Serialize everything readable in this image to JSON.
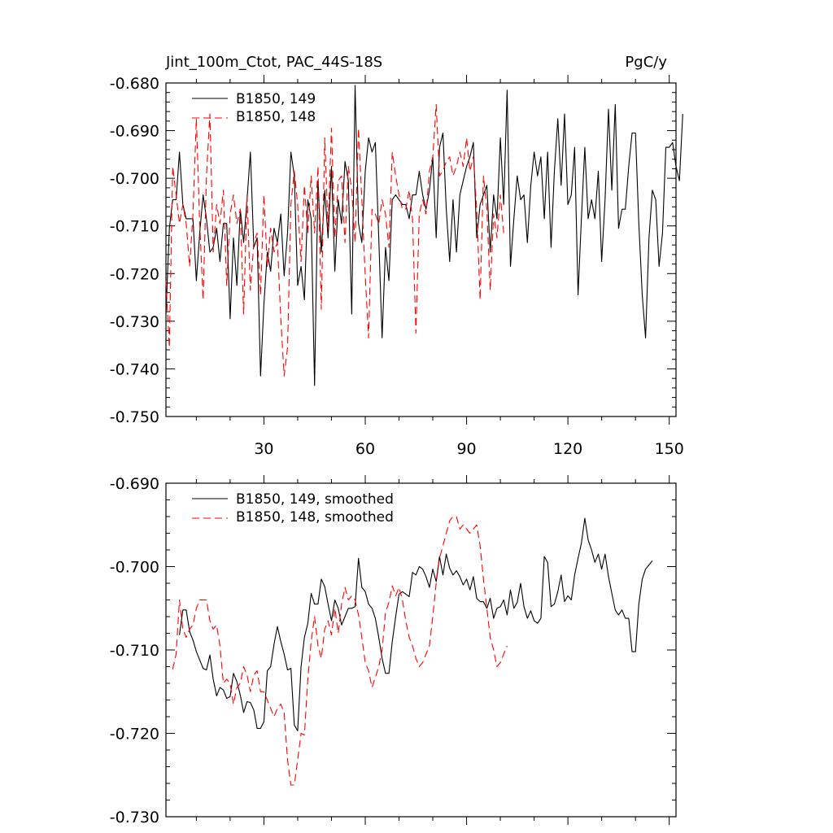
{
  "chart_data": [
    {
      "type": "line",
      "title": "Jint_100m_Ctot, PAC_44S-18S",
      "units": "PgC/y",
      "xlabel": "",
      "ylabel": "",
      "xlim": [
        1,
        152
      ],
      "ylim": [
        -0.75,
        -0.68
      ],
      "xticks": [
        30,
        60,
        90,
        120,
        150
      ],
      "xtick_labels": [
        "30",
        "60",
        "90",
        "120",
        "150"
      ],
      "yticks": [
        -0.75,
        -0.74,
        -0.73,
        -0.72,
        -0.71,
        -0.7,
        -0.69,
        -0.68
      ],
      "ytick_labels": [
        "-0.750",
        "-0.740",
        "-0.730",
        "-0.720",
        "-0.710",
        "-0.700",
        "-0.690",
        "-0.680"
      ],
      "legend_position": "top-left",
      "series": [
        {
          "name": "B1850, 149",
          "color": "#000000",
          "dash": "solid",
          "x_start": 1,
          "values": [
            -0.7285,
            -0.7105,
            -0.7045,
            -0.7045,
            -0.6945,
            -0.7055,
            -0.7085,
            -0.7085,
            -0.7085,
            -0.7215,
            -0.7115,
            -0.7035,
            -0.7085,
            -0.7155,
            -0.7145,
            -0.7105,
            -0.7175,
            -0.7095,
            -0.7095,
            -0.7295,
            -0.7125,
            -0.7225,
            -0.7065,
            -0.7135,
            -0.7045,
            -0.6945,
            -0.7145,
            -0.7125,
            -0.7415,
            -0.7265,
            -0.7155,
            -0.7195,
            -0.7105,
            -0.7135,
            -0.7075,
            -0.7205,
            -0.7115,
            -0.6945,
            -0.6995,
            -0.7225,
            -0.7185,
            -0.7255,
            -0.7045,
            -0.7085,
            -0.7435,
            -0.7005,
            -0.7155,
            -0.7025,
            -0.7125,
            -0.6975,
            -0.7195,
            -0.7045,
            -0.7095,
            -0.6965,
            -0.7005,
            -0.7285,
            -0.6805,
            -0.7095,
            -0.7135,
            -0.6985,
            -0.6915,
            -0.6945,
            -0.6925,
            -0.7125,
            -0.7335,
            -0.7145,
            -0.7215,
            -0.7045,
            -0.7035,
            -0.7045,
            -0.7055,
            -0.7055,
            -0.7085,
            -0.7035,
            -0.7035,
            -0.6985,
            -0.7035,
            -0.7065,
            -0.7025,
            -0.6955,
            -0.7125,
            -0.6935,
            -0.6905,
            -0.7065,
            -0.7175,
            -0.7045,
            -0.7155,
            -0.7035,
            -0.7005,
            -0.6975,
            -0.6955,
            -0.6925,
            -0.7125,
            -0.7055,
            -0.7035,
            -0.7015,
            -0.7155,
            -0.7035,
            -0.7085,
            -0.6915,
            -0.7055,
            -0.6815,
            -0.7185,
            -0.7085,
            -0.6995,
            -0.7045,
            -0.7035,
            -0.7135,
            -0.7015,
            -0.6945,
            -0.6995,
            -0.6955,
            -0.7085,
            -0.6945,
            -0.7145,
            -0.6985,
            -0.6875,
            -0.7015,
            -0.6865,
            -0.7055,
            -0.7035,
            -0.6935,
            -0.7245,
            -0.7085,
            -0.6935,
            -0.7085,
            -0.7045,
            -0.7085,
            -0.6985,
            -0.7175,
            -0.7045,
            -0.6855,
            -0.7025,
            -0.6845,
            -0.7105,
            -0.7065,
            -0.7065,
            -0.6975,
            -0.6905,
            -0.6905,
            -0.7095,
            -0.7245,
            -0.7335,
            -0.7125,
            -0.7025,
            -0.7045,
            -0.7185,
            -0.7115,
            -0.6935,
            -0.6935,
            -0.6925,
            -0.6975,
            -0.7005,
            -0.6865
          ]
        },
        {
          "name": "B1850, 148",
          "color": "#ff0000",
          "dash": "dashed",
          "x_start": 1,
          "values": [
            -0.7215,
            -0.7355,
            -0.6975,
            -0.7035,
            -0.7095,
            -0.7055,
            -0.7095,
            -0.7185,
            -0.7075,
            -0.6875,
            -0.7095,
            -0.7255,
            -0.6995,
            -0.6865,
            -0.7155,
            -0.7055,
            -0.7095,
            -0.7025,
            -0.7225,
            -0.7075,
            -0.7035,
            -0.7095,
            -0.7065,
            -0.7285,
            -0.7035,
            -0.7235,
            -0.7135,
            -0.7115,
            -0.7245,
            -0.7035,
            -0.7185,
            -0.7105,
            -0.7155,
            -0.7135,
            -0.7295,
            -0.7415,
            -0.7355,
            -0.7055,
            -0.6985,
            -0.7055,
            -0.7175,
            -0.7015,
            -0.7115,
            -0.6995,
            -0.7115,
            -0.6975,
            -0.7275,
            -0.6915,
            -0.7105,
            -0.6895,
            -0.7125,
            -0.7005,
            -0.6995,
            -0.7135,
            -0.6975,
            -0.7025,
            -0.7135,
            -0.6895,
            -0.7045,
            -0.7205,
            -0.7335,
            -0.7065,
            -0.7075,
            -0.7095,
            -0.7045,
            -0.7075,
            -0.7145,
            -0.6945,
            -0.6995,
            -0.7035,
            -0.7065,
            -0.7065,
            -0.7025,
            -0.7085,
            -0.7325,
            -0.7075,
            -0.7045,
            -0.7075,
            -0.6985,
            -0.6955,
            -0.6845,
            -0.6995,
            -0.6985,
            -0.6965,
            -0.6955,
            -0.6995,
            -0.6975,
            -0.6945,
            -0.6975,
            -0.6915,
            -0.6985,
            -0.6955,
            -0.7065,
            -0.7255,
            -0.6995,
            -0.7065,
            -0.7235,
            -0.7075,
            -0.7125,
            -0.7035,
            -0.7115
          ]
        }
      ]
    },
    {
      "type": "line",
      "title": "",
      "xlabel": "",
      "ylabel": "",
      "xlim": [
        1,
        152
      ],
      "ylim": [
        -0.73,
        -0.69
      ],
      "xticks": [
        30,
        60,
        90,
        120,
        150
      ],
      "yticks": [
        -0.73,
        -0.72,
        -0.71,
        -0.7,
        -0.69
      ],
      "ytick_labels": [
        "-0.730",
        "-0.720",
        "-0.710",
        "-0.700",
        "-0.690"
      ],
      "legend_position": "top-left",
      "series": [
        {
          "name": "B1850, 149, smoothed",
          "color": "#000000",
          "dash": "solid",
          "x_start": 5,
          "values": [
            -0.7082,
            -0.7052,
            -0.7052,
            -0.7078,
            -0.7088,
            -0.7102,
            -0.7112,
            -0.7122,
            -0.7124,
            -0.7106,
            -0.7135,
            -0.7155,
            -0.7145,
            -0.7148,
            -0.7158,
            -0.7156,
            -0.7128,
            -0.7138,
            -0.7154,
            -0.7175,
            -0.7162,
            -0.7163,
            -0.7172,
            -0.7194,
            -0.7194,
            -0.7186,
            -0.7125,
            -0.712,
            -0.7093,
            -0.7072,
            -0.709,
            -0.7105,
            -0.7124,
            -0.7122,
            -0.719,
            -0.7197,
            -0.712,
            -0.7085,
            -0.7068,
            -0.7032,
            -0.7045,
            -0.7045,
            -0.7015,
            -0.7024,
            -0.7045,
            -0.7065,
            -0.704,
            -0.705,
            -0.707,
            -0.706,
            -0.705,
            -0.705,
            -0.7048,
            -0.699,
            -0.7025,
            -0.703,
            -0.7045,
            -0.705,
            -0.7062,
            -0.7085,
            -0.711,
            -0.7128,
            -0.7128,
            -0.709,
            -0.706,
            -0.7033,
            -0.703,
            -0.7033,
            -0.7036,
            -0.7007,
            -0.701,
            -0.7,
            -0.7003,
            -0.7012,
            -0.7025,
            -0.7003,
            -0.7018,
            -0.6988,
            -0.701,
            -0.6985,
            -0.7002,
            -0.701,
            -0.7005,
            -0.7012,
            -0.7022,
            -0.7015,
            -0.7028,
            -0.7012,
            -0.7038,
            -0.7042,
            -0.7042,
            -0.705,
            -0.7038,
            -0.7062,
            -0.705,
            -0.7048,
            -0.704,
            -0.7058,
            -0.7028,
            -0.705,
            -0.7043,
            -0.702,
            -0.7048,
            -0.7062,
            -0.7053,
            -0.7065,
            -0.7068,
            -0.7062,
            -0.6988,
            -0.6995,
            -0.7048,
            -0.7045,
            -0.703,
            -0.701,
            -0.7042,
            -0.7035,
            -0.704,
            -0.701,
            -0.699,
            -0.6972,
            -0.6942,
            -0.6968,
            -0.698,
            -0.6995,
            -0.6985,
            -0.7003,
            -0.6985,
            -0.7012,
            -0.7032,
            -0.7052,
            -0.7058,
            -0.7052,
            -0.7062,
            -0.7062,
            -0.7102,
            -0.7102,
            -0.7045,
            -0.7015,
            -0.7003,
            -0.6998,
            -0.6993
          ]
        },
        {
          "name": "B1850, 148, smoothed",
          "color": "#ff0000",
          "dash": "dashed",
          "x_start": 3,
          "values": [
            -0.7123,
            -0.7105,
            -0.704,
            -0.7075,
            -0.7085,
            -0.7075,
            -0.707,
            -0.705,
            -0.704,
            -0.704,
            -0.704,
            -0.7065,
            -0.7075,
            -0.707,
            -0.7095,
            -0.714,
            -0.7135,
            -0.714,
            -0.7165,
            -0.7145,
            -0.714,
            -0.712,
            -0.713,
            -0.715,
            -0.713,
            -0.7125,
            -0.715,
            -0.715,
            -0.716,
            -0.717,
            -0.718,
            -0.717,
            -0.7165,
            -0.7175,
            -0.7232,
            -0.7262,
            -0.7262,
            -0.7232,
            -0.72,
            -0.7202,
            -0.7135,
            -0.709,
            -0.706,
            -0.7095,
            -0.711,
            -0.7075,
            -0.7065,
            -0.7082,
            -0.705,
            -0.708,
            -0.7045,
            -0.7025,
            -0.704,
            -0.7035,
            -0.704,
            -0.7058,
            -0.7085,
            -0.7115,
            -0.7125,
            -0.7145,
            -0.7133,
            -0.712,
            -0.71,
            -0.7055,
            -0.7043,
            -0.7023,
            -0.7035,
            -0.7025,
            -0.704,
            -0.7065,
            -0.7085,
            -0.7095,
            -0.711,
            -0.712,
            -0.7115,
            -0.7105,
            -0.7095,
            -0.706,
            -0.702,
            -0.699,
            -0.6975,
            -0.696,
            -0.6945,
            -0.694,
            -0.694,
            -0.6955,
            -0.695,
            -0.6955,
            -0.696,
            -0.6955,
            -0.695,
            -0.6975,
            -0.7015,
            -0.705,
            -0.7085,
            -0.71,
            -0.712,
            -0.7115,
            -0.7105,
            -0.7095
          ]
        }
      ]
    }
  ]
}
